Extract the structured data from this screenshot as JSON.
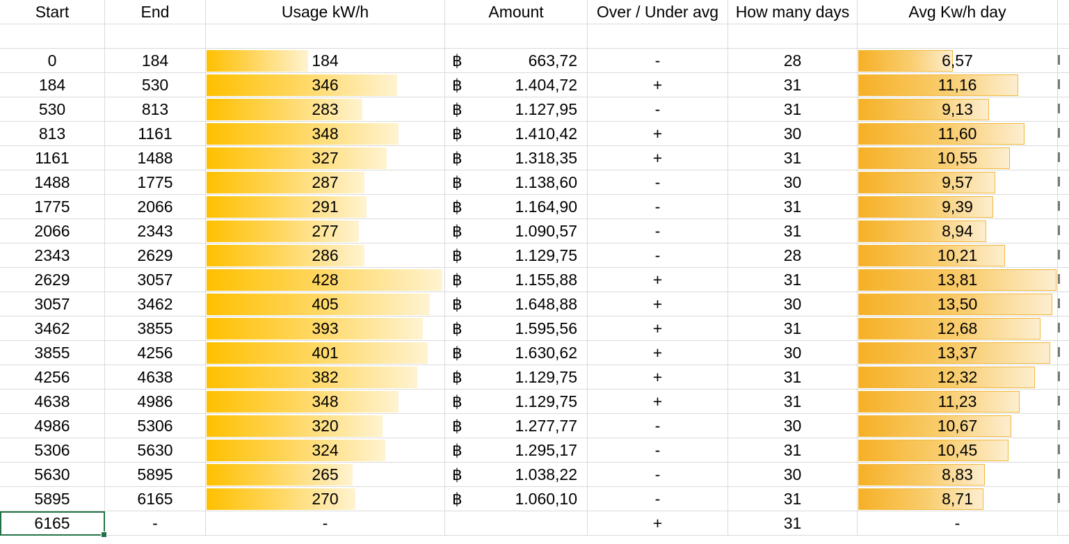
{
  "headers": [
    "Start",
    "End",
    "Usage kW/h",
    "Amount",
    "Over / Under avg",
    "How many days",
    "Avg Kw/h day"
  ],
  "currency_symbol": "฿",
  "colors": {
    "usage_bar": "#ffc000",
    "avg_bar": "#f6b026",
    "selection": "#217346",
    "gridline": "#dadada"
  },
  "bar_scale": {
    "usage_max": 428,
    "avg_max": 13.81
  },
  "rows": [
    {
      "start": "0",
      "end": "184",
      "usage": "184",
      "usage_value": 184,
      "amount": "663,72",
      "over_under": "-",
      "days": "28",
      "avg": "6,57",
      "avg_value": 6.57
    },
    {
      "start": "184",
      "end": "530",
      "usage": "346",
      "usage_value": 346,
      "amount": "1.404,72",
      "over_under": "+",
      "days": "31",
      "avg": "11,16",
      "avg_value": 11.16
    },
    {
      "start": "530",
      "end": "813",
      "usage": "283",
      "usage_value": 283,
      "amount": "1.127,95",
      "over_under": "-",
      "days": "31",
      "avg": "9,13",
      "avg_value": 9.13
    },
    {
      "start": "813",
      "end": "1161",
      "usage": "348",
      "usage_value": 348,
      "amount": "1.410,42",
      "over_under": "+",
      "days": "30",
      "avg": "11,60",
      "avg_value": 11.6
    },
    {
      "start": "1161",
      "end": "1488",
      "usage": "327",
      "usage_value": 327,
      "amount": "1.318,35",
      "over_under": "+",
      "days": "31",
      "avg": "10,55",
      "avg_value": 10.55
    },
    {
      "start": "1488",
      "end": "1775",
      "usage": "287",
      "usage_value": 287,
      "amount": "1.138,60",
      "over_under": "-",
      "days": "30",
      "avg": "9,57",
      "avg_value": 9.57
    },
    {
      "start": "1775",
      "end": "2066",
      "usage": "291",
      "usage_value": 291,
      "amount": "1.164,90",
      "over_under": "-",
      "days": "31",
      "avg": "9,39",
      "avg_value": 9.39
    },
    {
      "start": "2066",
      "end": "2343",
      "usage": "277",
      "usage_value": 277,
      "amount": "1.090,57",
      "over_under": "-",
      "days": "31",
      "avg": "8,94",
      "avg_value": 8.94
    },
    {
      "start": "2343",
      "end": "2629",
      "usage": "286",
      "usage_value": 286,
      "amount": "1.129,75",
      "over_under": "-",
      "days": "28",
      "avg": "10,21",
      "avg_value": 10.21
    },
    {
      "start": "2629",
      "end": "3057",
      "usage": "428",
      "usage_value": 428,
      "amount": "1.155,88",
      "over_under": "+",
      "days": "31",
      "avg": "13,81",
      "avg_value": 13.81
    },
    {
      "start": "3057",
      "end": "3462",
      "usage": "405",
      "usage_value": 405,
      "amount": "1.648,88",
      "over_under": "+",
      "days": "30",
      "avg": "13,50",
      "avg_value": 13.5
    },
    {
      "start": "3462",
      "end": "3855",
      "usage": "393",
      "usage_value": 393,
      "amount": "1.595,56",
      "over_under": "+",
      "days": "31",
      "avg": "12,68",
      "avg_value": 12.68
    },
    {
      "start": "3855",
      "end": "4256",
      "usage": "401",
      "usage_value": 401,
      "amount": "1.630,62",
      "over_under": "+",
      "days": "30",
      "avg": "13,37",
      "avg_value": 13.37
    },
    {
      "start": "4256",
      "end": "4638",
      "usage": "382",
      "usage_value": 382,
      "amount": "1.129,75",
      "over_under": "+",
      "days": "31",
      "avg": "12,32",
      "avg_value": 12.32
    },
    {
      "start": "4638",
      "end": "4986",
      "usage": "348",
      "usage_value": 348,
      "amount": "1.129,75",
      "over_under": "+",
      "days": "31",
      "avg": "11,23",
      "avg_value": 11.23
    },
    {
      "start": "4986",
      "end": "5306",
      "usage": "320",
      "usage_value": 320,
      "amount": "1.277,77",
      "over_under": "-",
      "days": "30",
      "avg": "10,67",
      "avg_value": 10.67
    },
    {
      "start": "5306",
      "end": "5630",
      "usage": "324",
      "usage_value": 324,
      "amount": "1.295,17",
      "over_under": "-",
      "days": "31",
      "avg": "10,45",
      "avg_value": 10.45
    },
    {
      "start": "5630",
      "end": "5895",
      "usage": "265",
      "usage_value": 265,
      "amount": "1.038,22",
      "over_under": "-",
      "days": "30",
      "avg": "8,83",
      "avg_value": 8.83
    },
    {
      "start": "5895",
      "end": "6165",
      "usage": "270",
      "usage_value": 270,
      "amount": "1.060,10",
      "over_under": "-",
      "days": "31",
      "avg": "8,71",
      "avg_value": 8.71
    }
  ],
  "last_row": {
    "start": "6165",
    "end": "-",
    "usage": "-",
    "amount": "",
    "over_under": "+",
    "days": "31",
    "avg": "-"
  }
}
